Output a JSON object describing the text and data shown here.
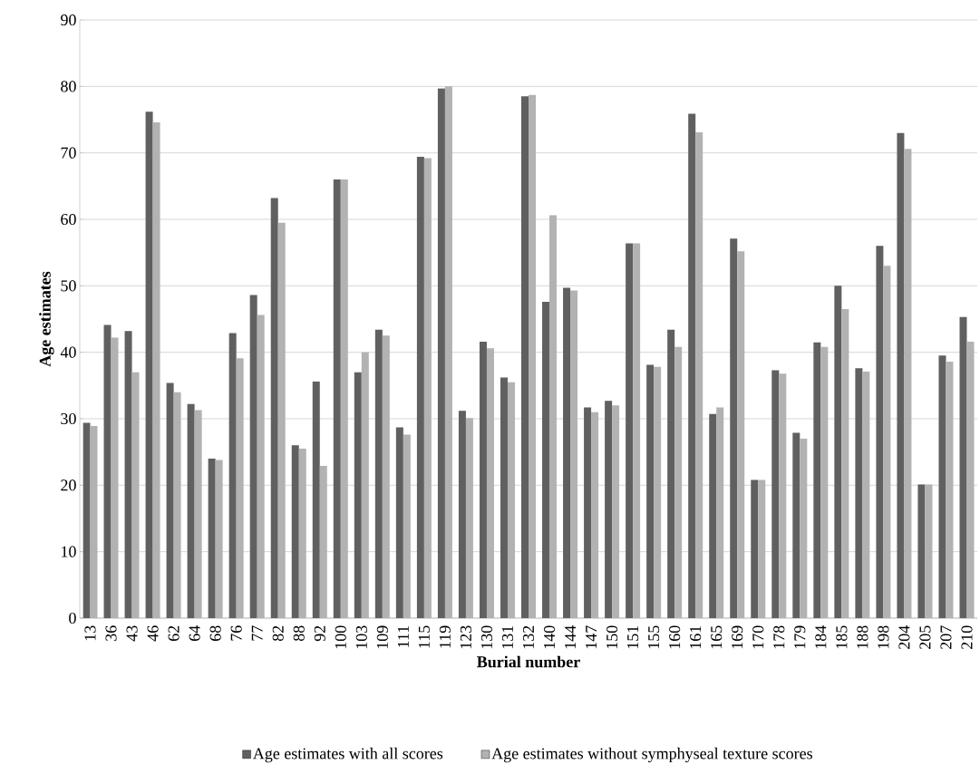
{
  "chart_data": {
    "type": "bar",
    "xlabel": "Burial number",
    "ylabel": "Age estimates",
    "categories": [
      "13",
      "36",
      "43",
      "46",
      "62",
      "64",
      "68",
      "76",
      "77",
      "82",
      "88",
      "92",
      "100",
      "103",
      "109",
      "111",
      "115",
      "119",
      "123",
      "130",
      "131",
      "132",
      "140",
      "144",
      "147",
      "150",
      "151",
      "155",
      "160",
      "161",
      "165",
      "169",
      "170",
      "178",
      "179",
      "184",
      "185",
      "188",
      "198",
      "204",
      "205",
      "207",
      "210"
    ],
    "series": [
      {
        "name": "Age estimates with all scores",
        "color": "#606060",
        "values": [
          29.4,
          44.1,
          43.2,
          76.2,
          35.4,
          32.2,
          24.0,
          42.9,
          48.6,
          63.2,
          26.0,
          35.6,
          66.0,
          37.0,
          43.4,
          28.7,
          69.4,
          79.7,
          31.2,
          41.6,
          36.2,
          78.5,
          47.6,
          49.7,
          31.7,
          32.7,
          56.4,
          38.1,
          43.4,
          75.9,
          30.7,
          57.1,
          20.8,
          37.3,
          27.9,
          41.5,
          50.0,
          37.6,
          56.0,
          73.0,
          20.1,
          39.5,
          45.3
        ]
      },
      {
        "name": "Age estimates without symphyseal texture scores",
        "color": "#b2b2b2",
        "values": [
          28.9,
          42.2,
          37.0,
          74.6,
          34.0,
          31.3,
          23.8,
          39.1,
          45.6,
          59.5,
          25.5,
          22.9,
          66.0,
          40.0,
          42.5,
          27.6,
          69.2,
          80.0,
          30.1,
          40.6,
          35.5,
          78.7,
          60.6,
          49.3,
          31.0,
          32.0,
          56.4,
          37.8,
          40.8,
          73.1,
          31.7,
          55.2,
          20.8,
          36.8,
          27.0,
          40.8,
          46.5,
          37.1,
          53.0,
          70.6,
          20.1,
          38.6,
          41.6
        ]
      }
    ],
    "ylim": [
      0,
      90
    ],
    "yticks": [
      0,
      10,
      20,
      30,
      40,
      50,
      60,
      70,
      80,
      90
    ],
    "grid": "y",
    "legend": "bottom"
  }
}
